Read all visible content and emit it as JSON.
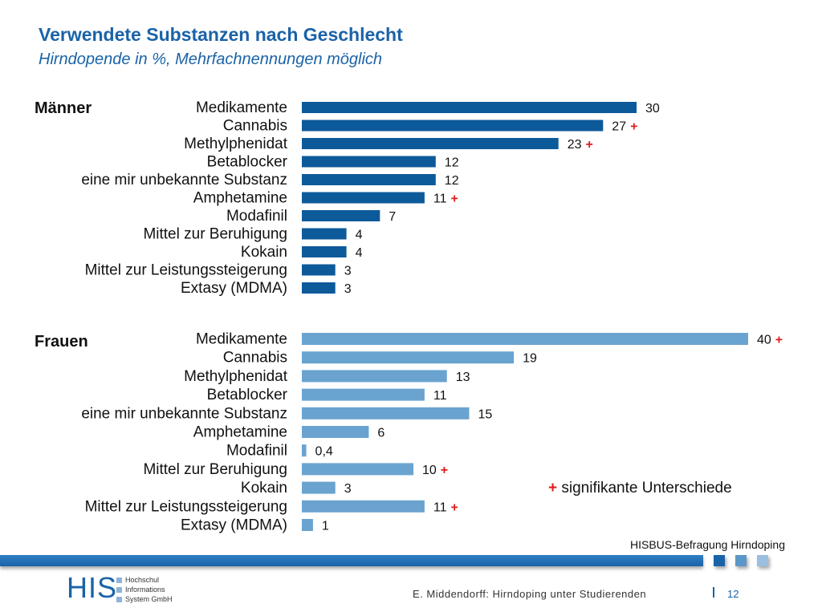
{
  "header": {
    "title": "Verwendete Substanzen nach Geschlecht",
    "subtitle": "Hirndopende in %, Mehrfachnennungen möglich"
  },
  "colors": {
    "maenner_bar": "#0d5a9a",
    "frauen_bar": "#6aa3cf",
    "significance_plus": "#e01b1b",
    "accent": "#1a63a8"
  },
  "chart_data": [
    {
      "type": "bar",
      "orientation": "horizontal",
      "group_label": "Männer",
      "categories": [
        "Medikamente",
        "Cannabis",
        "Methylphenidat",
        "Betablocker",
        "eine mir unbekannte Substanz",
        "Amphetamine",
        "Modafinil",
        "Mittel zur Beruhigung",
        "Kokain",
        "Mittel zur Leistungssteigerung",
        "Extasy (MDMA)"
      ],
      "values": [
        30,
        27,
        23,
        12,
        12,
        11,
        7,
        4,
        4,
        3,
        3
      ],
      "value_labels": [
        "30",
        "27",
        "23",
        "12",
        "12",
        "11",
        "7",
        "4",
        "4",
        "3",
        "3"
      ],
      "significant": [
        false,
        true,
        true,
        false,
        false,
        true,
        false,
        false,
        false,
        false,
        false
      ],
      "xlim": [
        0,
        40
      ]
    },
    {
      "type": "bar",
      "orientation": "horizontal",
      "group_label": "Frauen",
      "categories": [
        "Medikamente",
        "Cannabis",
        "Methylphenidat",
        "Betablocker",
        "eine mir unbekannte Substanz",
        "Amphetamine",
        "Modafinil",
        "Mittel zur Beruhigung",
        "Kokain",
        "Mittel zur Leistungssteigerung",
        "Extasy (MDMA)"
      ],
      "values": [
        40,
        19,
        13,
        11,
        15,
        6,
        0.4,
        10,
        3,
        11,
        1
      ],
      "value_labels": [
        "40",
        "19",
        "13",
        "11",
        "15",
        "6",
        "0,4",
        "10",
        "3",
        "11",
        "1"
      ],
      "significant": [
        true,
        false,
        false,
        false,
        false,
        false,
        false,
        true,
        false,
        true,
        false
      ],
      "xlim": [
        0,
        40
      ]
    }
  ],
  "legend": {
    "plus": "+",
    "text": "signifikante Unterschiede"
  },
  "source": "HISBUS-Befragung Hirndoping",
  "footer": {
    "logo": "HIS",
    "logo_lines": [
      "Hochschul",
      "Informations",
      "System GmbH"
    ],
    "author": "E. Middendorff: Hirndoping unter Studierenden",
    "page": "12"
  }
}
